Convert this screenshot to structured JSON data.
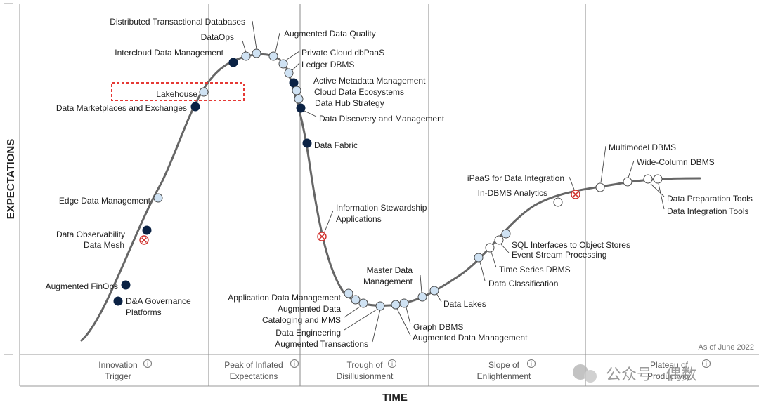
{
  "chart_data": {
    "type": "hype-cycle",
    "ylabel": "EXPECTATIONS",
    "xlabel": "TIME",
    "as_of": "As of June 2022",
    "phases": [
      {
        "line1": "Innovation",
        "line2": "Trigger"
      },
      {
        "line1": "Peak of Inflated",
        "line2": "Expectations"
      },
      {
        "line1": "Trough of",
        "line2": "Disillusionment"
      },
      {
        "line1": "Slope of",
        "line2": "Enlightenment"
      },
      {
        "line1": "Plateau of",
        "line2": "Productivity"
      }
    ],
    "highlighted": "Lakehouse",
    "legend_marker_types": [
      "transformational",
      "high",
      "moderate",
      "obsolete before plateau"
    ],
    "technologies": [
      {
        "label": "D&A Governance Platforms",
        "marker": "transformational"
      },
      {
        "label": "Augmented FinOps",
        "marker": "transformational"
      },
      {
        "label": "Data Mesh",
        "marker": "obsolete before plateau"
      },
      {
        "label": "Data Observability",
        "marker": "transformational"
      },
      {
        "label": "Edge Data Management",
        "marker": "high"
      },
      {
        "label": "Data Marketplaces and Exchanges",
        "marker": "transformational"
      },
      {
        "label": "Lakehouse",
        "marker": "high"
      },
      {
        "label": "Intercloud Data Management",
        "marker": "transformational"
      },
      {
        "label": "DataOps",
        "marker": "high"
      },
      {
        "label": "Distributed Transactional Databases",
        "marker": "high"
      },
      {
        "label": "Augmented Data Quality",
        "marker": "high"
      },
      {
        "label": "Private Cloud dbPaaS",
        "marker": "high"
      },
      {
        "label": "Ledger DBMS",
        "marker": "high"
      },
      {
        "label": "Active Metadata Management",
        "marker": "transformational"
      },
      {
        "label": "Cloud Data Ecosystems",
        "marker": "high"
      },
      {
        "label": "Data Hub Strategy",
        "marker": "high"
      },
      {
        "label": "Data Discovery and Management",
        "marker": "transformational"
      },
      {
        "label": "Data Fabric",
        "marker": "transformational"
      },
      {
        "label": "Information Stewardship Applications",
        "marker": "obsolete before plateau"
      },
      {
        "label": "Application Data Management",
        "marker": "high"
      },
      {
        "label": "Augmented Data",
        "marker": "high"
      },
      {
        "label": "Cataloging and MMS",
        "marker": "high"
      },
      {
        "label": "Data Engineering",
        "marker": "high"
      },
      {
        "label": "Augmented Transactions",
        "marker": "moderate"
      },
      {
        "label": "Graph DBMS",
        "marker": "high"
      },
      {
        "label": "Augmented Data Management",
        "marker": "high"
      },
      {
        "label": "Master Data Management",
        "marker": "high"
      },
      {
        "label": "Data Lakes",
        "marker": "high"
      },
      {
        "label": "Data Classification",
        "marker": "high"
      },
      {
        "label": "Time Series DBMS",
        "marker": "moderate"
      },
      {
        "label": "Event Stream Processing",
        "marker": "moderate"
      },
      {
        "label": "SQL Interfaces to Object Stores",
        "marker": "high"
      },
      {
        "label": "In-DBMS Analytics",
        "marker": "moderate"
      },
      {
        "label": "iPaaS for Data Integration",
        "marker": "obsolete before plateau"
      },
      {
        "label": "Multimodel DBMS",
        "marker": "moderate"
      },
      {
        "label": "Wide-Column DBMS",
        "marker": "moderate"
      },
      {
        "label": "Data Preparation Tools",
        "marker": "moderate"
      },
      {
        "label": "Data Integration Tools",
        "marker": "moderate"
      }
    ],
    "colors": {
      "curve": "#666666",
      "transformational": "#0b2244",
      "high": "#cfe2f3",
      "moderate": "#ffffff",
      "obsolete": "#d0312d",
      "highlight": "#e53935",
      "divider": "#8a8a8a"
    }
  },
  "watermark": {
    "text": "公众号 · 偶数"
  }
}
